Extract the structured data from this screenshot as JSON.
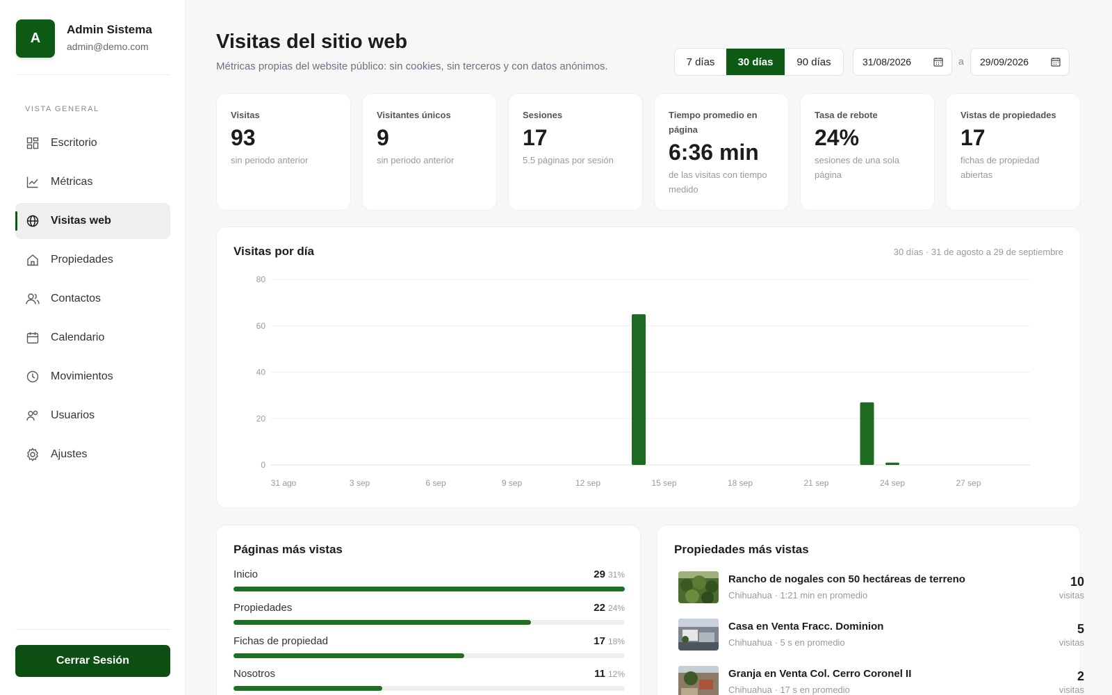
{
  "profile": {
    "initial": "A",
    "name": "Admin Sistema",
    "email": "admin@demo.com"
  },
  "sidebar": {
    "section_label": "VISTA GENERAL",
    "items": [
      {
        "label": "Escritorio",
        "icon": "dashboard-icon"
      },
      {
        "label": "Métricas",
        "icon": "chart-line-icon"
      },
      {
        "label": "Visitas web",
        "icon": "globe-icon",
        "active": true
      },
      {
        "label": "Propiedades",
        "icon": "home-icon"
      },
      {
        "label": "Contactos",
        "icon": "contacts-icon"
      },
      {
        "label": "Calendario",
        "icon": "calendar-icon"
      },
      {
        "label": "Movimientos",
        "icon": "clock-icon"
      },
      {
        "label": "Usuarios",
        "icon": "users-icon"
      },
      {
        "label": "Ajustes",
        "icon": "gear-icon"
      }
    ],
    "logout_label": "Cerrar Sesión"
  },
  "header": {
    "title": "Visitas del sitio web",
    "subtitle": "Métricas propias del website público: sin cookies, sin terceros y con datos anónimos.",
    "ranges": [
      "7 días",
      "30 días",
      "90 días"
    ],
    "active_range": "30 días",
    "date_from": "31/08/2026",
    "date_separator": "a",
    "date_to": "29/09/2026"
  },
  "kpis": [
    {
      "label": "Visitas",
      "value": "93",
      "sub": "sin periodo anterior"
    },
    {
      "label": "Visitantes únicos",
      "value": "9",
      "sub": "sin periodo anterior"
    },
    {
      "label": "Sesiones",
      "value": "17",
      "sub": "5.5 páginas por sesión"
    },
    {
      "label": "Tiempo promedio en página",
      "value": "6:36 min",
      "sub": "de las visitas con tiempo medido"
    },
    {
      "label": "Tasa de rebote",
      "value": "24%",
      "sub": "sesiones de una sola página"
    },
    {
      "label": "Vistas de propiedades",
      "value": "17",
      "sub": "fichas de propiedad abiertas"
    }
  ],
  "chart": {
    "title": "Visitas por día",
    "meta": "30 días · 31 de agosto a 29 de septiembre"
  },
  "chart_data": {
    "type": "bar",
    "title": "Visitas por día",
    "xlabel": "",
    "ylabel": "",
    "ylim": [
      0,
      80
    ],
    "yticks": [
      0,
      20,
      40,
      60,
      80
    ],
    "grid": true,
    "categories": [
      "31 ago",
      "1 sep",
      "2 sep",
      "3 sep",
      "4 sep",
      "5 sep",
      "6 sep",
      "7 sep",
      "8 sep",
      "9 sep",
      "10 sep",
      "11 sep",
      "12 sep",
      "13 sep",
      "14 sep",
      "15 sep",
      "16 sep",
      "17 sep",
      "18 sep",
      "19 sep",
      "20 sep",
      "21 sep",
      "22 sep",
      "23 sep",
      "24 sep",
      "25 sep",
      "26 sep",
      "27 sep",
      "28 sep",
      "29 sep"
    ],
    "tick_labels": [
      "31 ago",
      "3 sep",
      "6 sep",
      "9 sep",
      "12 sep",
      "15 sep",
      "18 sep",
      "21 sep",
      "24 sep",
      "27 sep"
    ],
    "values": [
      0,
      0,
      0,
      0,
      0,
      0,
      0,
      0,
      0,
      0,
      0,
      0,
      0,
      0,
      65,
      0,
      0,
      0,
      0,
      0,
      0,
      0,
      0,
      27,
      1,
      0,
      0,
      0,
      0,
      0
    ],
    "color": "#1d6b22"
  },
  "top_pages": {
    "title": "Páginas más vistas",
    "rows": [
      {
        "name": "Inicio",
        "count": "29",
        "pct": "31%",
        "share": 1.0
      },
      {
        "name": "Propiedades",
        "count": "22",
        "pct": "24%",
        "share": 0.76
      },
      {
        "name": "Fichas de propiedad",
        "count": "17",
        "pct": "18%",
        "share": 0.59
      },
      {
        "name": "Nosotros",
        "count": "11",
        "pct": "12%",
        "share": 0.38
      }
    ]
  },
  "top_properties": {
    "title": "Propiedades más vistas",
    "rows": [
      {
        "name": "Rancho de nogales con 50 hectáreas de terreno",
        "meta": "Chihuahua · 1:21 min en promedio",
        "count": "10",
        "unit": "visitas",
        "thumb": "ranch"
      },
      {
        "name": "Casa en Venta Fracc. Dominion",
        "meta": "Chihuahua · 5 s en promedio",
        "count": "5",
        "unit": "visitas",
        "thumb": "house"
      },
      {
        "name": "Granja en Venta Col. Cerro Coronel II",
        "meta": "Chihuahua · 17 s en promedio",
        "count": "2",
        "unit": "visitas",
        "thumb": "farm"
      }
    ]
  },
  "colors": {
    "brand": "#0d5a14",
    "bar": "#1d6b22",
    "bar_fill": "#1f6f24"
  }
}
